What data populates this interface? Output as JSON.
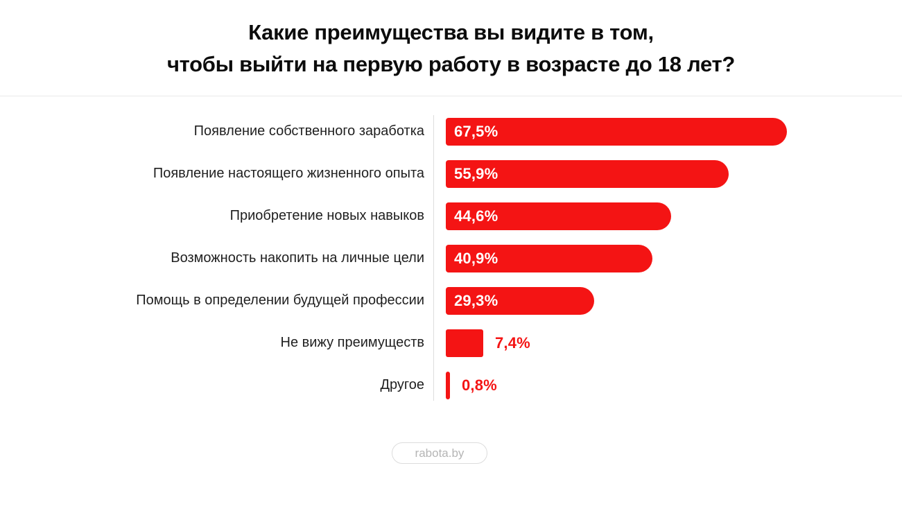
{
  "title": {
    "line1": "Какие преимущества вы видите в том,",
    "line2": "чтобы выйти на первую работу в возрасте до 18 лет?"
  },
  "chart_data": {
    "type": "bar",
    "orientation": "horizontal",
    "title": "Какие преимущества вы видите в том, чтобы выйти на первую работу в возрасте до 18 лет?",
    "categories": [
      "Появление собственного заработка",
      "Появление настоящего жизненного опыта",
      "Приобретение новых навыков",
      "Возможность накопить на личные цели",
      "Помощь в определении будущей профессии",
      "Не вижу преимуществ",
      "Другое"
    ],
    "values": [
      67.5,
      55.9,
      44.6,
      40.9,
      29.3,
      7.4,
      0.8
    ],
    "value_labels": [
      "67,5%",
      "55,9%",
      "44,6%",
      "40,9%",
      "29,3%",
      "7,4%",
      "0,8%"
    ],
    "value_label_position": [
      "inside",
      "inside",
      "inside",
      "inside",
      "inside",
      "outside",
      "outside"
    ],
    "unit": "%",
    "xlim": [
      0,
      100
    ],
    "grid": false,
    "legend": false,
    "bar_color": "#f41414",
    "inside_label_color": "#ffffff",
    "outside_label_color": "#f41414"
  },
  "footer": {
    "badge_label": "rabota.by"
  },
  "colors": {
    "background": "#ffffff",
    "title_text": "#0c0c0c",
    "category_text": "#1f1f1f",
    "divider": "#e9e9e9",
    "axis_line": "#dddddd",
    "badge_border": "#dcdcdc",
    "badge_text": "#b5b5b5"
  }
}
